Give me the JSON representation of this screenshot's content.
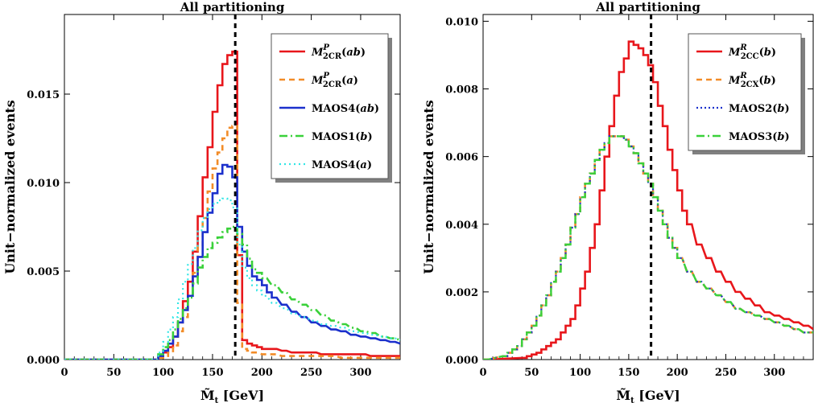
{
  "chart_data": [
    {
      "type": "line",
      "title": "All partitioning",
      "xlabel": "M̃",
      "xlabel_sub": "t",
      "xlabel_unit": " [GeV]",
      "ylabel": "Unit−normalized events",
      "xlim": [
        0,
        340
      ],
      "ylim": [
        0,
        0.0195
      ],
      "xticks": [
        0,
        50,
        100,
        150,
        200,
        250,
        300
      ],
      "yticks": [
        0.0,
        0.005,
        0.01,
        0.015
      ],
      "ytick_labels": [
        "0.000",
        "0.005",
        "0.010",
        "0.015"
      ],
      "bin_width": 5,
      "legend_position": "top-right",
      "vline": {
        "x": 173,
        "style": "dashed",
        "color": "#000000"
      },
      "series": [
        {
          "name": "M",
          "sup": "P",
          "sub": "2CR",
          "arg": "ab",
          "color": "#e8161b",
          "dash": "",
          "width": 2.6,
          "x": [
            90,
            95,
            100,
            105,
            110,
            115,
            120,
            125,
            130,
            135,
            140,
            145,
            150,
            155,
            160,
            165,
            170,
            175,
            180,
            185,
            190,
            195,
            200,
            210,
            220,
            230,
            240,
            250,
            260,
            270,
            280,
            290,
            300,
            310,
            320,
            330,
            340
          ],
          "y": [
            0.0,
            0.0002,
            0.0004,
            0.0007,
            0.0013,
            0.0021,
            0.0033,
            0.0044,
            0.0061,
            0.0081,
            0.0103,
            0.012,
            0.014,
            0.0155,
            0.0167,
            0.0172,
            0.0174,
            0.0059,
            0.0011,
            0.0009,
            0.0008,
            0.0007,
            0.0006,
            0.0006,
            0.0005,
            0.0004,
            0.0004,
            0.0004,
            0.0003,
            0.0003,
            0.0003,
            0.0003,
            0.0003,
            0.0002,
            0.0002,
            0.0002,
            0.0002
          ]
        },
        {
          "name": "M",
          "sup": "P",
          "sub": "2CR",
          "arg": "a",
          "color": "#f28c28",
          "dash": "7,5",
          "width": 2.6,
          "x": [
            90,
            95,
            100,
            105,
            110,
            115,
            120,
            125,
            130,
            135,
            140,
            145,
            150,
            155,
            160,
            165,
            170,
            175,
            180,
            185,
            190,
            200,
            210,
            220,
            230,
            240,
            250,
            260,
            270,
            280,
            290,
            300,
            310,
            320,
            330,
            340
          ],
          "y": [
            0.0,
            0.0001,
            0.0002,
            0.0004,
            0.0008,
            0.0016,
            0.0024,
            0.0036,
            0.0049,
            0.0064,
            0.008,
            0.0095,
            0.0108,
            0.0117,
            0.0125,
            0.0131,
            0.0132,
            0.0032,
            0.0006,
            0.0005,
            0.0004,
            0.0003,
            0.0003,
            0.0002,
            0.0002,
            0.0002,
            0.0002,
            0.0002,
            0.0002,
            0.0001,
            0.0001,
            0.0001,
            0.0001,
            0.0001,
            0.0001,
            0.0001
          ]
        },
        {
          "name": "MAOS4",
          "sup": "",
          "sub": "",
          "arg": "ab",
          "color": "#1b30cc",
          "dash": "",
          "width": 2.6,
          "x": [
            90,
            95,
            100,
            105,
            110,
            115,
            120,
            125,
            130,
            135,
            140,
            145,
            150,
            155,
            160,
            165,
            170,
            175,
            180,
            185,
            190,
            195,
            200,
            205,
            210,
            220,
            230,
            240,
            250,
            260,
            270,
            280,
            290,
            300,
            310,
            320,
            330,
            340
          ],
          "y": [
            0.0,
            0.0002,
            0.0005,
            0.0009,
            0.0013,
            0.0021,
            0.0028,
            0.0036,
            0.0047,
            0.0058,
            0.0072,
            0.0083,
            0.0094,
            0.0105,
            0.011,
            0.0109,
            0.0103,
            0.0075,
            0.0061,
            0.0053,
            0.0047,
            0.0045,
            0.0042,
            0.0038,
            0.0035,
            0.0031,
            0.0027,
            0.0024,
            0.0021,
            0.0019,
            0.0017,
            0.0016,
            0.0014,
            0.0013,
            0.0012,
            0.0011,
            0.001,
            0.0009
          ]
        },
        {
          "name": "MAOS1",
          "sup": "",
          "sub": "",
          "arg": "b",
          "color": "#3ad13a",
          "dash": "10,4,2,4",
          "width": 2.6,
          "x": [
            90,
            95,
            100,
            105,
            110,
            115,
            120,
            125,
            130,
            135,
            140,
            145,
            150,
            155,
            160,
            165,
            170,
            175,
            180,
            185,
            190,
            195,
            200,
            210,
            220,
            230,
            240,
            250,
            260,
            270,
            280,
            290,
            300,
            310,
            320,
            330,
            340
          ],
          "y": [
            0.0,
            0.0003,
            0.0007,
            0.0011,
            0.0017,
            0.0023,
            0.0029,
            0.0035,
            0.0043,
            0.0052,
            0.0058,
            0.0063,
            0.0066,
            0.0069,
            0.0072,
            0.0074,
            0.0075,
            0.0071,
            0.0065,
            0.0057,
            0.0051,
            0.0049,
            0.0046,
            0.0042,
            0.0038,
            0.0034,
            0.0031,
            0.0028,
            0.0025,
            0.0022,
            0.002,
            0.0018,
            0.0016,
            0.0015,
            0.0013,
            0.0012,
            0.0011
          ]
        },
        {
          "name": "MAOS4",
          "sup": "",
          "sub": "",
          "arg": "a",
          "color": "#33e6e6",
          "dash": "2,4",
          "width": 2.2,
          "x": [
            90,
            95,
            100,
            105,
            110,
            115,
            120,
            125,
            130,
            135,
            140,
            145,
            150,
            155,
            160,
            165,
            170,
            175,
            180,
            185,
            190,
            195,
            200,
            210,
            220,
            230,
            240,
            250,
            260,
            270,
            280,
            290,
            300,
            310,
            320,
            330,
            340
          ],
          "y": [
            0.0,
            0.0004,
            0.001,
            0.0017,
            0.0024,
            0.0034,
            0.0044,
            0.0054,
            0.0063,
            0.0073,
            0.008,
            0.0085,
            0.0088,
            0.009,
            0.0091,
            0.009,
            0.0086,
            0.0065,
            0.0052,
            0.0046,
            0.0042,
            0.0039,
            0.0036,
            0.0032,
            0.0029,
            0.0026,
            0.0024,
            0.0022,
            0.002,
            0.0019,
            0.0018,
            0.0016,
            0.0015,
            0.0014,
            0.0013,
            0.0012,
            0.0011
          ]
        }
      ]
    },
    {
      "type": "line",
      "title": "All partitioning",
      "xlabel": "M̃",
      "xlabel_sub": "t",
      "xlabel_unit": " [GeV]",
      "ylabel": "Unit−normalized events",
      "xlim": [
        0,
        340
      ],
      "ylim": [
        0,
        0.0102
      ],
      "xticks": [
        0,
        50,
        100,
        150,
        200,
        250,
        300
      ],
      "yticks": [
        0.0,
        0.002,
        0.004,
        0.006,
        0.008,
        0.01
      ],
      "ytick_labels": [
        "0.000",
        "0.002",
        "0.004",
        "0.006",
        "0.008",
        "0.010"
      ],
      "bin_width": 5,
      "legend_position": "top-right",
      "vline": {
        "x": 173,
        "style": "dashed",
        "color": "#000000"
      },
      "series": [
        {
          "name": "M",
          "sup": "R",
          "sub": "2CC",
          "arg": "b",
          "color": "#e8161b",
          "dash": "",
          "width": 2.6,
          "x": [
            0,
            40,
            45,
            50,
            55,
            60,
            65,
            70,
            75,
            80,
            85,
            90,
            95,
            100,
            105,
            110,
            115,
            120,
            125,
            130,
            135,
            140,
            145,
            150,
            155,
            160,
            165,
            170,
            175,
            180,
            185,
            190,
            195,
            200,
            205,
            210,
            220,
            230,
            240,
            250,
            260,
            270,
            280,
            290,
            300,
            310,
            320,
            330,
            340
          ],
          "y": [
            0.0,
            5e-05,
            0.0001,
            0.00015,
            0.0002,
            0.0003,
            0.0004,
            0.0005,
            0.0006,
            0.0008,
            0.001,
            0.0012,
            0.0016,
            0.0021,
            0.0026,
            0.0033,
            0.004,
            0.005,
            0.006,
            0.0069,
            0.0078,
            0.0085,
            0.0089,
            0.0094,
            0.0093,
            0.0092,
            0.009,
            0.0087,
            0.0082,
            0.0075,
            0.0069,
            0.0062,
            0.0056,
            0.005,
            0.0044,
            0.004,
            0.0034,
            0.003,
            0.0026,
            0.0023,
            0.002,
            0.0018,
            0.0016,
            0.0014,
            0.0013,
            0.0012,
            0.0011,
            0.001,
            0.0009
          ]
        },
        {
          "name": "M",
          "sup": "R",
          "sub": "2CX",
          "arg": "b",
          "color": "#f28c28",
          "dash": "7,5",
          "width": 2.6,
          "x": [
            0,
            20,
            25,
            30,
            35,
            40,
            45,
            50,
            55,
            60,
            65,
            70,
            75,
            80,
            85,
            90,
            95,
            100,
            105,
            110,
            115,
            120,
            125,
            130,
            135,
            140,
            145,
            150,
            155,
            160,
            165,
            170,
            175,
            180,
            185,
            190,
            195,
            200,
            210,
            220,
            230,
            240,
            250,
            260,
            270,
            280,
            290,
            300,
            310,
            320,
            330,
            340
          ],
          "y": [
            0.0,
            0.0001,
            0.0002,
            0.0003,
            0.0004,
            0.0006,
            0.0008,
            0.001,
            0.0013,
            0.0016,
            0.0019,
            0.0023,
            0.0026,
            0.003,
            0.0034,
            0.0039,
            0.0043,
            0.0048,
            0.0052,
            0.0055,
            0.0059,
            0.0062,
            0.0064,
            0.0066,
            0.0066,
            0.0066,
            0.0065,
            0.0063,
            0.0061,
            0.0058,
            0.0055,
            0.0052,
            0.0048,
            0.0044,
            0.004,
            0.0036,
            0.0033,
            0.003,
            0.0026,
            0.0023,
            0.0021,
            0.0019,
            0.0017,
            0.0015,
            0.0014,
            0.0013,
            0.0012,
            0.0011,
            0.001,
            0.0009,
            0.0008,
            0.0008
          ]
        },
        {
          "name": "MAOS2",
          "sup": "",
          "sub": "",
          "arg": "b",
          "color": "#1b30cc",
          "dash": "2,3",
          "width": 2.2,
          "x": [
            0,
            20,
            25,
            30,
            35,
            40,
            45,
            50,
            55,
            60,
            65,
            70,
            75,
            80,
            85,
            90,
            95,
            100,
            105,
            110,
            115,
            120,
            125,
            130,
            135,
            140,
            145,
            150,
            155,
            160,
            165,
            170,
            175,
            180,
            185,
            190,
            195,
            200,
            210,
            220,
            230,
            240,
            250,
            260,
            270,
            280,
            290,
            300,
            310,
            320,
            330,
            340
          ],
          "y": [
            0.0,
            0.0001,
            0.0002,
            0.0003,
            0.0004,
            0.0006,
            0.0008,
            0.001,
            0.0013,
            0.0016,
            0.0019,
            0.0023,
            0.0026,
            0.003,
            0.0034,
            0.0039,
            0.0043,
            0.0048,
            0.0052,
            0.0055,
            0.0059,
            0.0062,
            0.0064,
            0.0066,
            0.0066,
            0.0066,
            0.0065,
            0.0063,
            0.0061,
            0.0058,
            0.0055,
            0.0052,
            0.0048,
            0.0044,
            0.004,
            0.0036,
            0.0033,
            0.003,
            0.0026,
            0.0023,
            0.0021,
            0.0019,
            0.0017,
            0.0015,
            0.0014,
            0.0013,
            0.0012,
            0.0011,
            0.001,
            0.0009,
            0.0008,
            0.0008
          ]
        },
        {
          "name": "MAOS3",
          "sup": "",
          "sub": "",
          "arg": "b",
          "color": "#3ad13a",
          "dash": "10,4,2,4",
          "width": 2.4,
          "x": [
            0,
            20,
            25,
            30,
            35,
            40,
            45,
            50,
            55,
            60,
            65,
            70,
            75,
            80,
            85,
            90,
            95,
            100,
            105,
            110,
            115,
            120,
            125,
            130,
            135,
            140,
            145,
            150,
            155,
            160,
            165,
            170,
            175,
            180,
            185,
            190,
            195,
            200,
            210,
            220,
            230,
            240,
            250,
            260,
            270,
            280,
            290,
            300,
            310,
            320,
            330,
            340
          ],
          "y": [
            0.0,
            0.0001,
            0.0002,
            0.0003,
            0.0004,
            0.0006,
            0.0008,
            0.001,
            0.0013,
            0.0016,
            0.0019,
            0.0023,
            0.0026,
            0.003,
            0.0034,
            0.0039,
            0.0043,
            0.0048,
            0.0052,
            0.0055,
            0.0059,
            0.0062,
            0.0064,
            0.0066,
            0.0066,
            0.0066,
            0.0065,
            0.0063,
            0.0061,
            0.0058,
            0.0055,
            0.0052,
            0.0048,
            0.0044,
            0.004,
            0.0036,
            0.0033,
            0.003,
            0.0026,
            0.0023,
            0.0021,
            0.0019,
            0.0017,
            0.0015,
            0.0014,
            0.0013,
            0.0012,
            0.0011,
            0.001,
            0.0009,
            0.0008,
            0.0008
          ]
        }
      ]
    }
  ]
}
